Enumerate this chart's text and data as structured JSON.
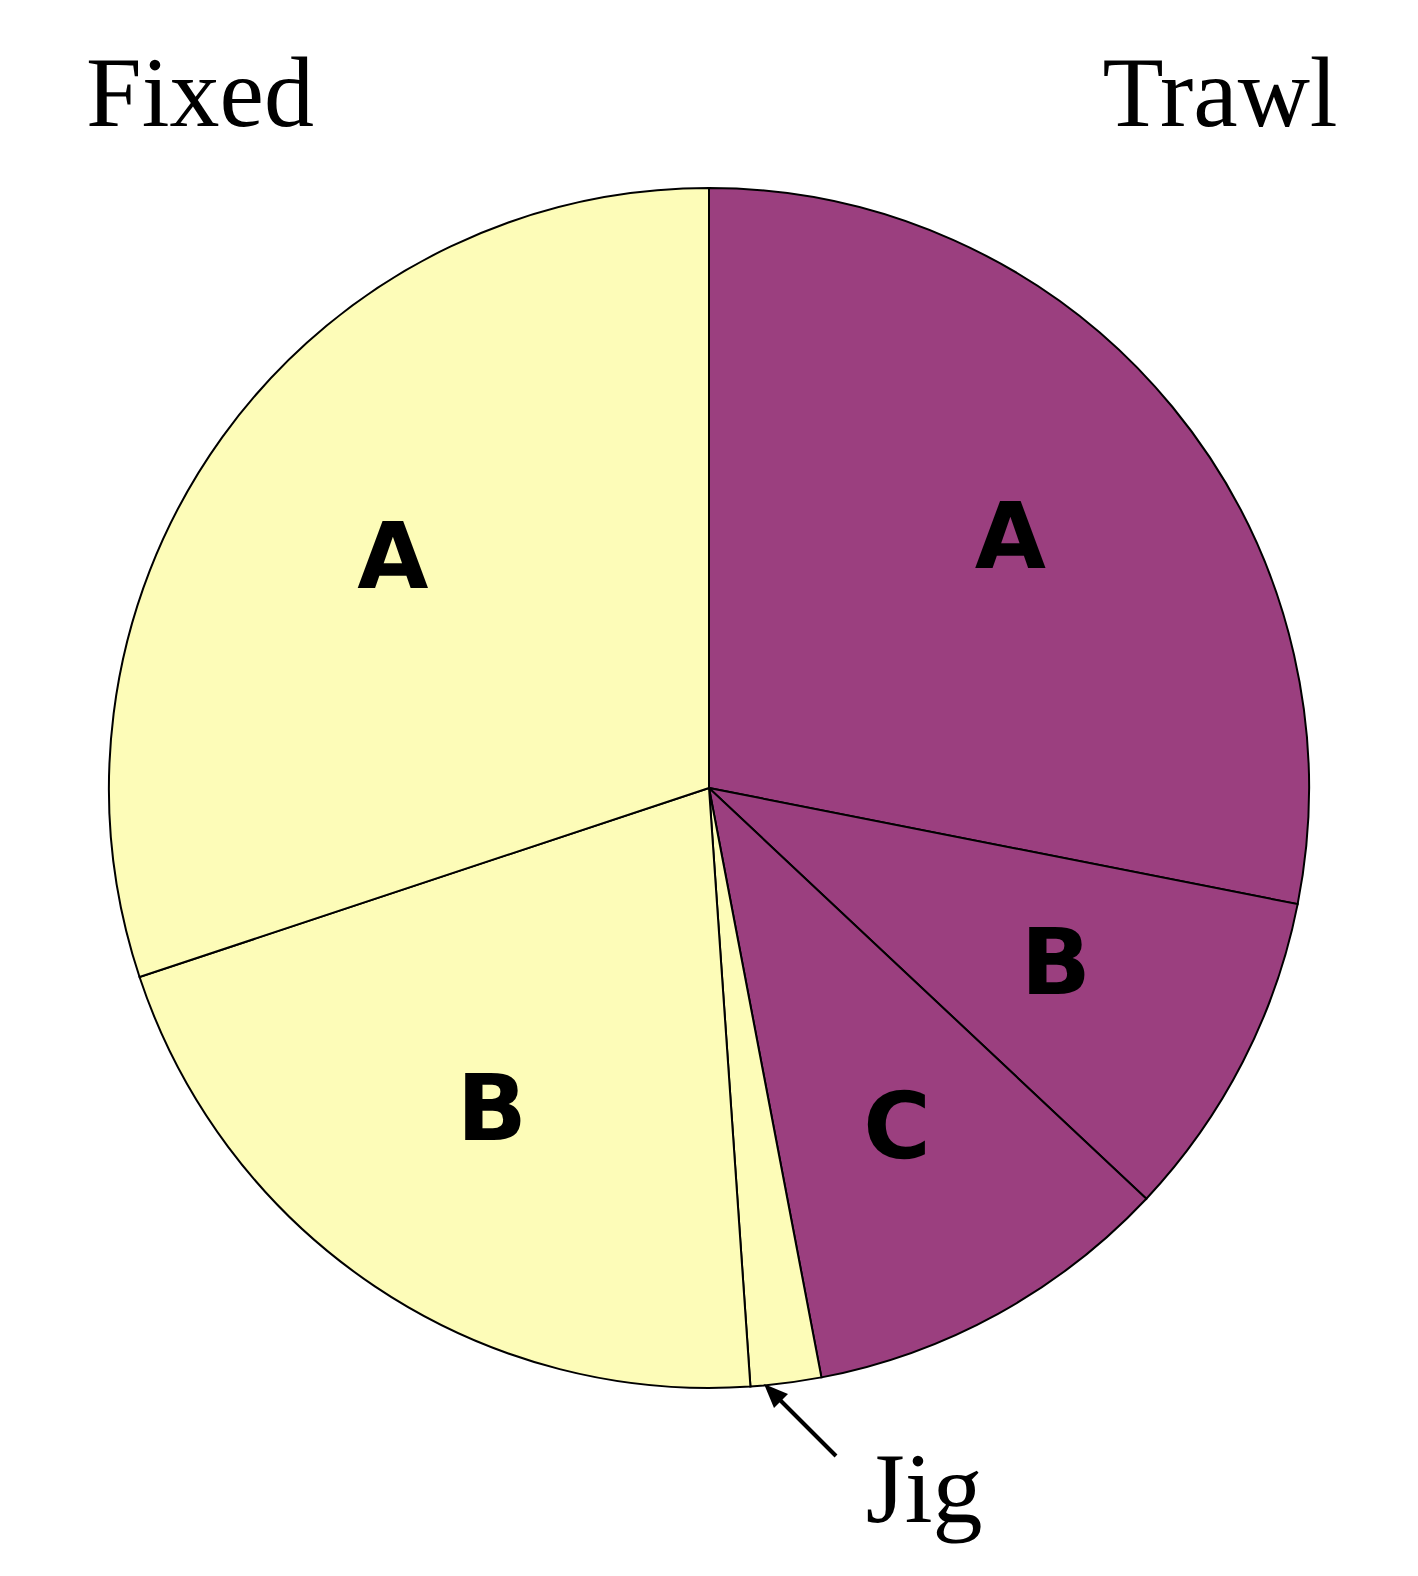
{
  "chart_data": {
    "type": "pie",
    "categories": [
      "A",
      "B",
      "C",
      "Jig",
      "B",
      "A"
    ],
    "values": [
      28.1,
      8.9,
      10,
      1.9,
      21,
      30.1
    ],
    "colors": [
      "#9b3f7f",
      "#9b3f7f",
      "#9b3f7f",
      "#fdfcb8",
      "#fdfcb8",
      "#fdfcb8"
    ],
    "annotations": [
      "Fixed",
      "Trawl"
    ]
  }
}
